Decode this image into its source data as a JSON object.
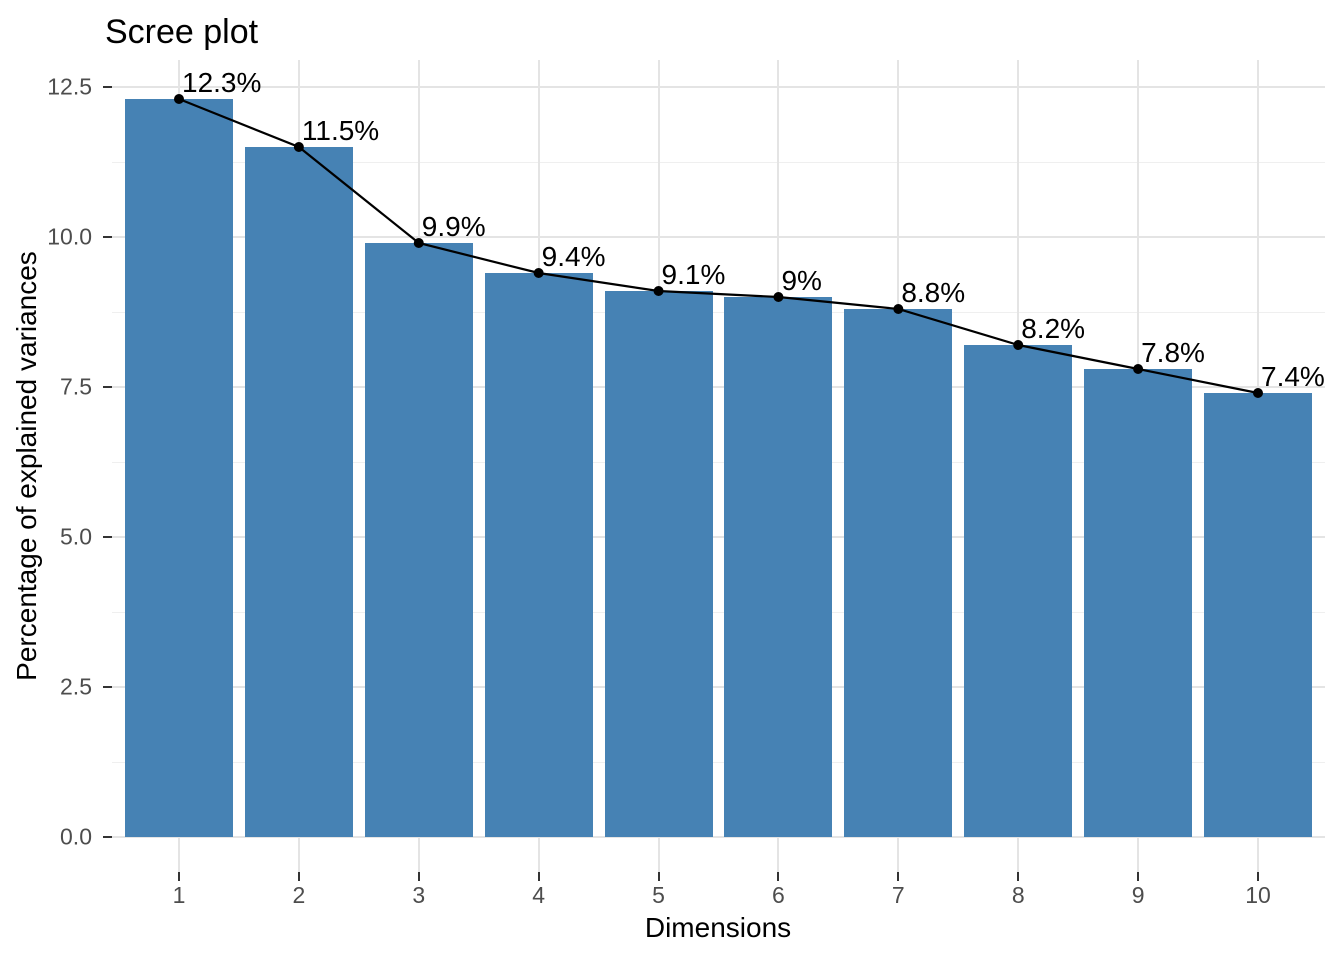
{
  "chart_data": {
    "type": "bar",
    "title": "Scree plot",
    "xlabel": "Dimensions",
    "ylabel": "Percentage of explained variances",
    "categories": [
      "1",
      "2",
      "3",
      "4",
      "5",
      "6",
      "7",
      "8",
      "9",
      "10"
    ],
    "values": [
      12.3,
      11.5,
      9.9,
      9.4,
      9.1,
      9.0,
      8.8,
      8.2,
      7.8,
      7.4
    ],
    "point_labels": [
      "12.3%",
      "11.5%",
      "9.9%",
      "9.4%",
      "9.1%",
      "9%",
      "8.8%",
      "8.2%",
      "7.8%",
      "7.4%"
    ],
    "overlay": "line-with-points",
    "y_ticks": [
      {
        "value": 0.0,
        "label": "0.0"
      },
      {
        "value": 2.5,
        "label": "2.5"
      },
      {
        "value": 5.0,
        "label": "5.0"
      },
      {
        "value": 7.5,
        "label": "7.5"
      },
      {
        "value": 10.0,
        "label": "10.0"
      },
      {
        "value": 12.5,
        "label": "12.5"
      }
    ],
    "ylim": [
      0,
      12.9
    ],
    "grid": true,
    "legend_position": "none",
    "colors": {
      "bar_fill": "#4682B4",
      "line": "#000000",
      "point": "#000000",
      "grid_major": "#e4e4e4",
      "grid_minor": "#efefef",
      "axis_text": "#4d4d4d",
      "tick_mark": "#333333",
      "title_text": "#000000",
      "background": "#ffffff"
    }
  }
}
